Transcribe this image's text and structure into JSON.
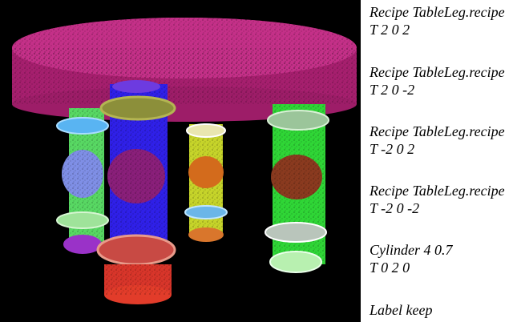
{
  "viewport": {
    "background": "#000000",
    "objects": [
      {
        "name": "table-top-disc",
        "color": "#c0267a"
      },
      {
        "name": "table-leg-blue",
        "color": "#3b2bff"
      },
      {
        "name": "table-leg-green-left",
        "color": "#5ee06a"
      },
      {
        "name": "table-leg-yellow",
        "color": "#c8d52c"
      },
      {
        "name": "table-leg-green-right",
        "color": "#2fe033"
      },
      {
        "name": "leg-ring-orange",
        "color": "#e1402a"
      }
    ]
  },
  "recipe_panel": {
    "entries": [
      {
        "line1": "Recipe TableLeg.recipe",
        "line2": "T 2 0 2"
      },
      {
        "line1": "Recipe TableLeg.recipe",
        "line2": "T 2 0 -2"
      },
      {
        "line1": "Recipe TableLeg.recipe",
        "line2": "T -2 0 2"
      },
      {
        "line1": "Recipe TableLeg.recipe",
        "line2": "T -2 0 -2"
      },
      {
        "line1": "Cylinder 4 0.7",
        "line2": "T 0 2 0"
      },
      {
        "line1": "Label keep",
        "line2": ""
      }
    ]
  }
}
